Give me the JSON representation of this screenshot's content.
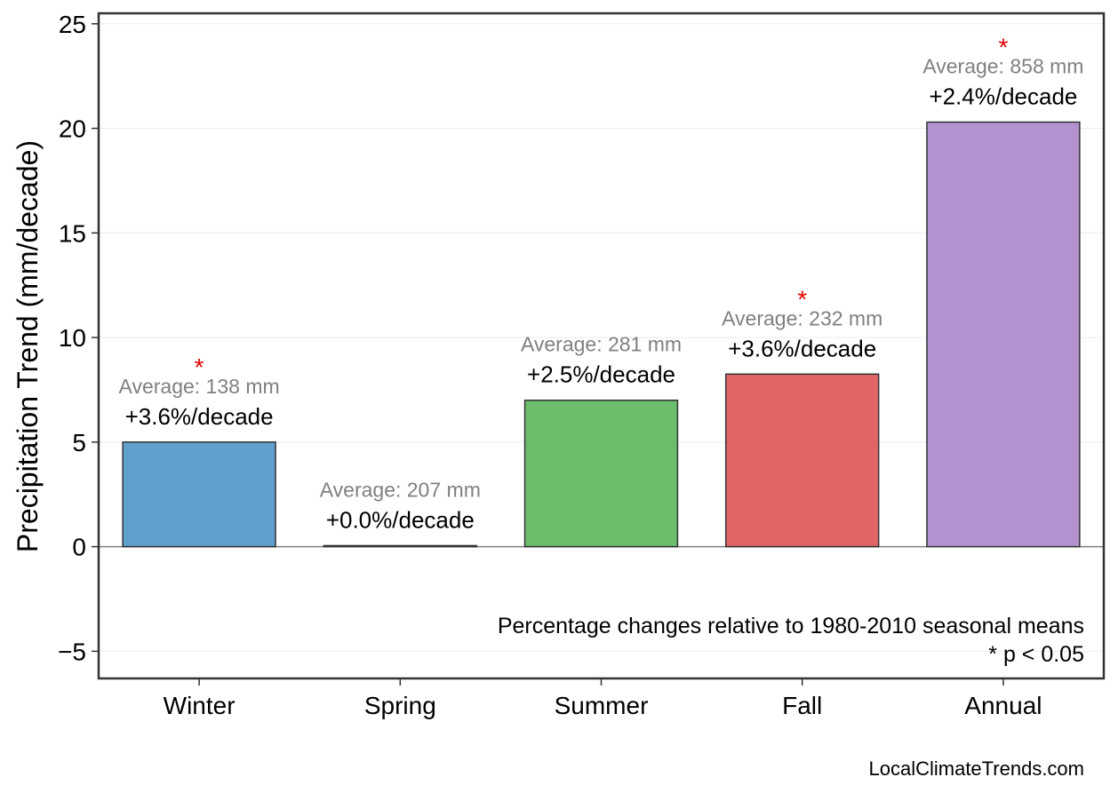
{
  "chart_data": {
    "type": "bar",
    "categories": [
      "Winter",
      "Spring",
      "Summer",
      "Fall",
      "Annual"
    ],
    "values": [
      5.0,
      0.05,
      7.0,
      8.25,
      20.3
    ],
    "colors": [
      "#5fa0cc",
      "#333333",
      "#6bbd6b",
      "#e06666",
      "#b293cf"
    ],
    "averages": [
      "Average: 138 mm",
      "Average: 207 mm",
      "Average: 281 mm",
      "Average: 232 mm",
      "Average: 858 mm"
    ],
    "percent_changes": [
      "+3.6%/decade",
      "+0.0%/decade",
      "+2.5%/decade",
      "+3.6%/decade",
      "+2.4%/decade"
    ],
    "significant": [
      true,
      false,
      false,
      true,
      true
    ],
    "significance_marker": "*",
    "ylabel": "Precipitation Trend (mm/decade)",
    "xlabel": "",
    "ylim": [
      -6.3,
      25.5
    ],
    "yticks": [
      -5,
      0,
      5,
      10,
      15,
      20,
      25
    ],
    "ytick_labels": [
      "−5",
      "0",
      "5",
      "10",
      "15",
      "20",
      "25"
    ],
    "grid": true,
    "zero_line": true
  },
  "notes": {
    "line1": "Percentage changes relative to 1980-2010 seasonal means",
    "line2": "* p < 0.05"
  },
  "credit": "LocalClimateTrends.com"
}
